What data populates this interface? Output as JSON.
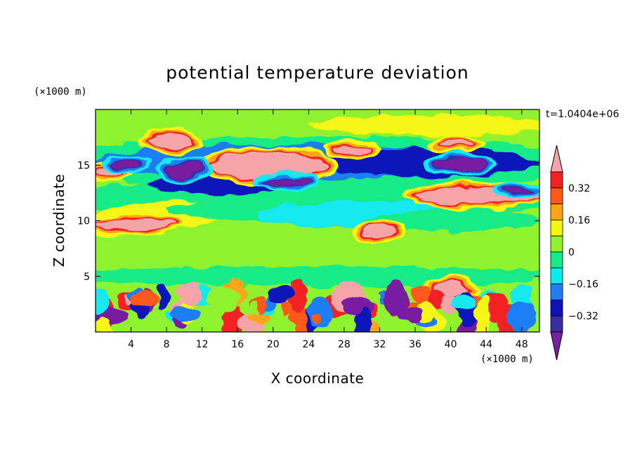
{
  "chart_data": {
    "type": "heatmap",
    "title": "potential temperature deviation",
    "xlabel": "X coordinate",
    "ylabel": "Z coordinate",
    "x_unit": "(×1000 m)",
    "y_unit": "(×1000 m)",
    "time_label": "t=1.0404e+06",
    "xlim": [
      0,
      50
    ],
    "ylim": [
      0,
      20
    ],
    "x_ticks": [
      4,
      8,
      12,
      16,
      20,
      24,
      28,
      32,
      36,
      40,
      44,
      48
    ],
    "y_ticks": [
      5,
      10,
      15
    ],
    "x_tick_labels": [
      "4",
      "8",
      "12",
      "16",
      "20",
      "24",
      "28",
      "32",
      "36",
      "40",
      "44",
      "48"
    ],
    "y_tick_labels": [
      "5",
      "10",
      "15"
    ],
    "colorbar": {
      "levels": [
        -0.4,
        -0.32,
        -0.24,
        -0.16,
        -0.08,
        0,
        0.08,
        0.16,
        0.24,
        0.32,
        0.4
      ],
      "labels": [
        "0.32",
        "0.16",
        "0",
        "−0.16",
        "−0.32"
      ],
      "label_values": [
        0.32,
        0.16,
        0,
        -0.16,
        -0.32
      ],
      "colors": [
        "#7a1fa2",
        "#3b2ea3",
        "#0d13b8",
        "#1f7df5",
        "#13e8f0",
        "#15eb88",
        "#8ff22f",
        "#f5f512",
        "#ffa512",
        "#ff5a1a",
        "#f22222",
        "#f7a4a8"
      ],
      "extend": "both"
    },
    "features": [
      {
        "level": 0.42,
        "x": [
          0.2,
          3.2
        ],
        "z": [
          14.0,
          14.8
        ]
      },
      {
        "level": 0.42,
        "x": [
          6,
          11
        ],
        "z": [
          16.5,
          17.8
        ]
      },
      {
        "level": 0.42,
        "x": [
          13,
          26
        ],
        "z": [
          13.7,
          16.2
        ]
      },
      {
        "level": 0.42,
        "x": [
          27,
          31
        ],
        "z": [
          16.0,
          16.8
        ]
      },
      {
        "level": 0.42,
        "x": [
          30,
          34
        ],
        "z": [
          8.6,
          9.6
        ]
      },
      {
        "level": 0.42,
        "x": [
          38.5,
          42.5
        ],
        "z": [
          16.6,
          17.2
        ]
      },
      {
        "level": 0.42,
        "x": [
          36,
          50
        ],
        "z": [
          11.5,
          13.0
        ]
      },
      {
        "level": 0.42,
        "x": [
          0,
          9
        ],
        "z": [
          9.2,
          10.2
        ]
      },
      {
        "level": 0.42,
        "x": [
          38,
          42
        ],
        "z": [
          3.2,
          4.5
        ]
      },
      {
        "level": -0.42,
        "x": [
          8,
          12
        ],
        "z": [
          14.0,
          15.2
        ]
      },
      {
        "level": -0.42,
        "x": [
          19,
          24
        ],
        "z": [
          13.2,
          13.8
        ]
      },
      {
        "level": -0.42,
        "x": [
          38,
          44
        ],
        "z": [
          14.6,
          15.6
        ]
      },
      {
        "level": -0.42,
        "x": [
          46,
          49
        ],
        "z": [
          12.6,
          13.0
        ]
      },
      {
        "level": -0.42,
        "x": [
          2,
          5
        ],
        "z": [
          14.8,
          15.3
        ]
      }
    ]
  }
}
